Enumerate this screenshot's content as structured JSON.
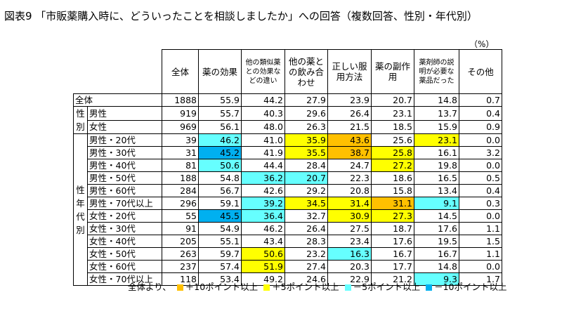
{
  "title": "図表9 「市販薬購入時に、どういったことを相談しましたか」への回答（複数回答、性別・年代別）",
  "unit": "（%）",
  "columns": [
    "全体",
    "薬の効果",
    "他の類似薬との効果などの違い",
    "他の薬との飲み合わせ",
    "正しい服用方法",
    "薬の副作用",
    "薬剤師の説明が必要な薬品だった",
    "その他"
  ],
  "groups": {
    "seibetsu": "性別",
    "seinendai": "性年代別"
  },
  "rows": [
    {
      "label": "全体",
      "total": "1888",
      "values": [
        "55.9",
        "44.2",
        "27.9",
        "23.9",
        "20.7",
        "14.8",
        "0.7"
      ],
      "hl": [
        "",
        "",
        "",
        "",
        "",
        "",
        ""
      ]
    },
    {
      "label": "男性",
      "total": "919",
      "values": [
        "55.7",
        "40.3",
        "29.6",
        "26.4",
        "23.1",
        "13.7",
        "0.4"
      ],
      "hl": [
        "",
        "",
        "",
        "",
        "",
        "",
        ""
      ]
    },
    {
      "label": "女性",
      "total": "969",
      "values": [
        "56.1",
        "48.0",
        "26.3",
        "21.5",
        "18.5",
        "15.9",
        "0.9"
      ],
      "hl": [
        "",
        "",
        "",
        "",
        "",
        "",
        ""
      ]
    },
    {
      "label": "男性・20代",
      "total": "39",
      "values": [
        "46.2",
        "41.0",
        "35.9",
        "43.6",
        "25.6",
        "23.1",
        "0.0"
      ],
      "hl": [
        "hm5",
        "",
        "hp5",
        "hp10",
        "",
        "hp5",
        ""
      ]
    },
    {
      "label": "男性・30代",
      "total": "31",
      "values": [
        "45.2",
        "41.9",
        "35.5",
        "38.7",
        "25.8",
        "16.1",
        "3.2"
      ],
      "hl": [
        "hm10",
        "",
        "hp5",
        "hp10",
        "hp5",
        "",
        ""
      ]
    },
    {
      "label": "男性・40代",
      "total": "81",
      "values": [
        "50.6",
        "44.4",
        "28.4",
        "24.7",
        "27.2",
        "19.8",
        "0.0"
      ],
      "hl": [
        "hm5",
        "",
        "",
        "",
        "hp5",
        "",
        ""
      ]
    },
    {
      "label": "男性・50代",
      "total": "188",
      "values": [
        "54.8",
        "36.2",
        "20.7",
        "22.3",
        "18.6",
        "16.5",
        "0.5"
      ],
      "hl": [
        "",
        "hm5",
        "hm5",
        "",
        "",
        "",
        ""
      ]
    },
    {
      "label": "男性・60代",
      "total": "284",
      "values": [
        "56.7",
        "42.6",
        "29.2",
        "20.8",
        "15.8",
        "13.4",
        "0.4"
      ],
      "hl": [
        "",
        "",
        "",
        "",
        "",
        "",
        ""
      ]
    },
    {
      "label": "男性・70代以上",
      "total": "296",
      "values": [
        "59.1",
        "39.2",
        "34.5",
        "31.4",
        "31.1",
        "9.1",
        "0.3"
      ],
      "hl": [
        "",
        "hm5",
        "hp5",
        "hp5",
        "hp10",
        "hm5",
        ""
      ]
    },
    {
      "label": "女性・20代",
      "total": "55",
      "values": [
        "45.5",
        "36.4",
        "32.7",
        "30.9",
        "27.3",
        "14.5",
        "0.0"
      ],
      "hl": [
        "hm10",
        "hm5",
        "",
        "hp5",
        "hp5",
        "",
        ""
      ]
    },
    {
      "label": "女性・30代",
      "total": "91",
      "values": [
        "54.9",
        "46.2",
        "26.4",
        "27.5",
        "18.7",
        "17.6",
        "1.1"
      ],
      "hl": [
        "",
        "",
        "",
        "",
        "",
        "",
        ""
      ]
    },
    {
      "label": "女性・40代",
      "total": "205",
      "values": [
        "55.1",
        "43.4",
        "28.3",
        "23.4",
        "17.6",
        "19.5",
        "1.5"
      ],
      "hl": [
        "",
        "",
        "",
        "",
        "",
        "",
        ""
      ]
    },
    {
      "label": "女性・50代",
      "total": "263",
      "values": [
        "59.7",
        "50.6",
        "23.2",
        "16.3",
        "16.7",
        "16.7",
        "1.1"
      ],
      "hl": [
        "",
        "hp5",
        "",
        "hm5",
        "",
        "",
        ""
      ]
    },
    {
      "label": "女性・60代",
      "total": "237",
      "values": [
        "57.4",
        "51.9",
        "27.4",
        "20.3",
        "17.7",
        "14.8",
        "0.0"
      ],
      "hl": [
        "",
        "hp5",
        "",
        "",
        "",
        "",
        ""
      ]
    },
    {
      "label": "女性・70代以上",
      "total": "118",
      "values": [
        "53.4",
        "49.2",
        "24.6",
        "22.9",
        "21.2",
        "9.3",
        "1.7"
      ],
      "hl": [
        "",
        "",
        "",
        "",
        "",
        "hm5",
        ""
      ]
    }
  ],
  "legend": {
    "prefix": "全体より、",
    "items": [
      {
        "label": "＋10ポイント以上",
        "color": "#FFC000"
      },
      {
        "label": "＋5ポイント以上",
        "color": "#FFFF00"
      },
      {
        "label": "－5ポイント以上",
        "color": "#66FFFF"
      },
      {
        "label": "－10ポイント以上",
        "color": "#00B0F0"
      }
    ]
  }
}
